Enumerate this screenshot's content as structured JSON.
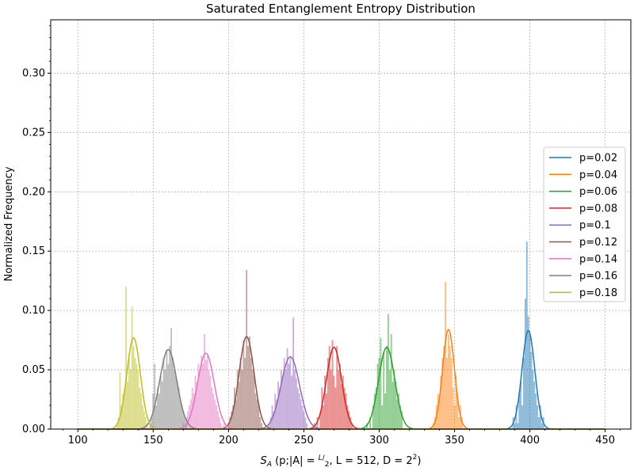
{
  "chart_data": {
    "type": "histogram",
    "title": "Saturated Entanglement Entropy Distribution",
    "xlabel": {
      "sym": "S",
      "sub": "A",
      "text_open": " (p;|A| = ",
      "frac_num": "L",
      "frac_den": "2",
      "text_mid": ", L = 512, D = 2",
      "sup": "2",
      "text_close": ")"
    },
    "ylabel": "Normalized Frequency",
    "xlim": [
      82,
      467
    ],
    "ylim": [
      0,
      0.345
    ],
    "x_ticks": [
      100,
      150,
      200,
      250,
      300,
      350,
      400,
      450
    ],
    "y_ticks": [
      0.0,
      0.05,
      0.1,
      0.15,
      0.2,
      0.25,
      0.3
    ],
    "x_tick_labels": [
      "100",
      "150",
      "200",
      "250",
      "300",
      "350",
      "400",
      "450"
    ],
    "y_tick_labels": [
      "0.00",
      "0.05",
      "0.10",
      "0.15",
      "0.20",
      "0.25",
      "0.30"
    ],
    "grid": true,
    "legend_position": "center-right",
    "fit_x_range": [
      100,
      450
    ],
    "series": [
      {
        "name": "p=0.02",
        "color": "#1f77b4",
        "mean": 399,
        "peak": 0.083,
        "bin_width": 1,
        "hist": [
          [
            389,
            0.01
          ],
          [
            390,
            0.005
          ],
          [
            391,
            0.02
          ],
          [
            392,
            0.005
          ],
          [
            393,
            0.03
          ],
          [
            394,
            0.04
          ],
          [
            395,
            0.02
          ],
          [
            396,
            0.06
          ],
          [
            397,
            0.11
          ],
          [
            398,
            0.158
          ],
          [
            399,
            0.095
          ],
          [
            400,
            0.08
          ],
          [
            401,
            0.065
          ],
          [
            402,
            0.05
          ],
          [
            403,
            0.04
          ],
          [
            404,
            0.03
          ],
          [
            405,
            0.02
          ],
          [
            406,
            0.01
          ],
          [
            407,
            0.02
          ],
          [
            408,
            0.005
          ],
          [
            409,
            0.01
          ]
        ]
      },
      {
        "name": "p=0.04",
        "color": "#ff7f0e",
        "mean": 346,
        "peak": 0.084,
        "bin_width": 1,
        "hist": [
          [
            336,
            0.005
          ],
          [
            337,
            0.01
          ],
          [
            338,
            0.02
          ],
          [
            339,
            0.03
          ],
          [
            340,
            0.025
          ],
          [
            341,
            0.045
          ],
          [
            342,
            0.06
          ],
          [
            343,
            0.07
          ],
          [
            344,
            0.124
          ],
          [
            345,
            0.06
          ],
          [
            346,
            0.08
          ],
          [
            347,
            0.07
          ],
          [
            348,
            0.06
          ],
          [
            349,
            0.035
          ],
          [
            350,
            0.02
          ],
          [
            351,
            0.045
          ],
          [
            352,
            0.03
          ],
          [
            353,
            0.01
          ],
          [
            354,
            0.02
          ],
          [
            355,
            0.01
          ]
        ]
      },
      {
        "name": "p=0.06",
        "color": "#2ca02c",
        "mean": 305,
        "peak": 0.069,
        "bin_width": 1,
        "hist": [
          [
            292,
            0.005
          ],
          [
            294,
            0.01
          ],
          [
            296,
            0.02
          ],
          [
            297,
            0.03
          ],
          [
            298,
            0.035
          ],
          [
            299,
            0.055
          ],
          [
            300,
            0.06
          ],
          [
            301,
            0.077
          ],
          [
            302,
            0.02
          ],
          [
            303,
            0.065
          ],
          [
            304,
            0.03
          ],
          [
            305,
            0.07
          ],
          [
            306,
            0.097
          ],
          [
            307,
            0.05
          ],
          [
            308,
            0.08
          ],
          [
            309,
            0.04
          ],
          [
            310,
            0.05
          ],
          [
            311,
            0.04
          ],
          [
            312,
            0.025
          ],
          [
            313,
            0.03
          ],
          [
            314,
            0.02
          ],
          [
            315,
            0.015
          ]
        ]
      },
      {
        "name": "p=0.08",
        "color": "#d62728",
        "mean": 270,
        "peak": 0.069,
        "bin_width": 1,
        "hist": [
          [
            257,
            0.005
          ],
          [
            259,
            0.01
          ],
          [
            261,
            0.015
          ],
          [
            262,
            0.035
          ],
          [
            263,
            0.02
          ],
          [
            264,
            0.045
          ],
          [
            265,
            0.03
          ],
          [
            266,
            0.06
          ],
          [
            267,
            0.07
          ],
          [
            268,
            0.05
          ],
          [
            269,
            0.075
          ],
          [
            270,
            0.045
          ],
          [
            271,
            0.035
          ],
          [
            272,
            0.07
          ],
          [
            273,
            0.05
          ],
          [
            274,
            0.055
          ],
          [
            275,
            0.038
          ],
          [
            276,
            0.045
          ],
          [
            277,
            0.035
          ],
          [
            278,
            0.03
          ],
          [
            279,
            0.02
          ],
          [
            280,
            0.015
          ],
          [
            281,
            0.01
          ],
          [
            282,
            0.005
          ]
        ]
      },
      {
        "name": "p=0.1",
        "color": "#9467bd",
        "mean": 241,
        "peak": 0.061,
        "bin_width": 1,
        "hist": [
          [
            227,
            0.005
          ],
          [
            228,
            0.01
          ],
          [
            229,
            0.02
          ],
          [
            230,
            0.015
          ],
          [
            231,
            0.03
          ],
          [
            232,
            0.025
          ],
          [
            233,
            0.04
          ],
          [
            234,
            0.035
          ],
          [
            235,
            0.05
          ],
          [
            236,
            0.045
          ],
          [
            237,
            0.06
          ],
          [
            238,
            0.05
          ],
          [
            239,
            0.068
          ],
          [
            240,
            0.055
          ],
          [
            241,
            0.06
          ],
          [
            242,
            0.045
          ],
          [
            243,
            0.094
          ],
          [
            244,
            0.05
          ],
          [
            245,
            0.043
          ],
          [
            246,
            0.035
          ],
          [
            247,
            0.03
          ],
          [
            248,
            0.025
          ],
          [
            249,
            0.02
          ],
          [
            250,
            0.015
          ],
          [
            251,
            0.01
          ],
          [
            252,
            0.005
          ]
        ]
      },
      {
        "name": "p=0.12",
        "color": "#8c564b",
        "mean": 212,
        "peak": 0.078,
        "bin_width": 1,
        "hist": [
          [
            200,
            0.005
          ],
          [
            201,
            0.01
          ],
          [
            202,
            0.015
          ],
          [
            203,
            0.02
          ],
          [
            204,
            0.035
          ],
          [
            205,
            0.025
          ],
          [
            206,
            0.05
          ],
          [
            207,
            0.04
          ],
          [
            208,
            0.06
          ],
          [
            209,
            0.05
          ],
          [
            210,
            0.075
          ],
          [
            211,
            0.06
          ],
          [
            212,
            0.134
          ],
          [
            213,
            0.07
          ],
          [
            214,
            0.078
          ],
          [
            215,
            0.06
          ],
          [
            216,
            0.05
          ],
          [
            217,
            0.045
          ],
          [
            218,
            0.03
          ],
          [
            219,
            0.025
          ],
          [
            220,
            0.02
          ],
          [
            221,
            0.01
          ],
          [
            222,
            0.005
          ]
        ]
      },
      {
        "name": "p=0.14",
        "color": "#e377c2",
        "mean": 185,
        "peak": 0.064,
        "bin_width": 1,
        "hist": [
          [
            170,
            0.005
          ],
          [
            172,
            0.01
          ],
          [
            173,
            0.015
          ],
          [
            174,
            0.02
          ],
          [
            175,
            0.025
          ],
          [
            176,
            0.035
          ],
          [
            177,
            0.03
          ],
          [
            178,
            0.045
          ],
          [
            179,
            0.04
          ],
          [
            180,
            0.055
          ],
          [
            181,
            0.05
          ],
          [
            182,
            0.062
          ],
          [
            183,
            0.055
          ],
          [
            184,
            0.08
          ],
          [
            185,
            0.058
          ],
          [
            186,
            0.062
          ],
          [
            187,
            0.05
          ],
          [
            188,
            0.045
          ],
          [
            189,
            0.035
          ],
          [
            190,
            0.03
          ],
          [
            191,
            0.025
          ],
          [
            192,
            0.02
          ],
          [
            193,
            0.015
          ],
          [
            194,
            0.01
          ],
          [
            195,
            0.005
          ],
          [
            197,
            0.005
          ]
        ]
      },
      {
        "name": "p=0.16",
        "color": "#7f7f7f",
        "mean": 160,
        "peak": 0.067,
        "bin_width": 1,
        "hist": [
          [
            148,
            0.005
          ],
          [
            149,
            0.01
          ],
          [
            150,
            0.03
          ],
          [
            151,
            0.055
          ],
          [
            152,
            0.02
          ],
          [
            153,
            0.035
          ],
          [
            154,
            0.03
          ],
          [
            155,
            0.045
          ],
          [
            156,
            0.04
          ],
          [
            157,
            0.06
          ],
          [
            158,
            0.05
          ],
          [
            159,
            0.067
          ],
          [
            160,
            0.055
          ],
          [
            161,
            0.07
          ],
          [
            162,
            0.085
          ],
          [
            163,
            0.06
          ],
          [
            164,
            0.05
          ],
          [
            165,
            0.045
          ],
          [
            166,
            0.04
          ],
          [
            167,
            0.035
          ],
          [
            168,
            0.025
          ],
          [
            169,
            0.02
          ],
          [
            170,
            0.015
          ],
          [
            171,
            0.01
          ],
          [
            172,
            0.005
          ]
        ]
      },
      {
        "name": "p=0.18",
        "color": "#bcbd22",
        "mean": 137,
        "peak": 0.077,
        "bin_width": 1,
        "hist": [
          [
            126,
            0.005
          ],
          [
            127,
            0.01
          ],
          [
            128,
            0.048
          ],
          [
            129,
            0.02
          ],
          [
            130,
            0.03
          ],
          [
            131,
            0.035
          ],
          [
            132,
            0.12
          ],
          [
            133,
            0.04
          ],
          [
            134,
            0.06
          ],
          [
            135,
            0.05
          ],
          [
            136,
            0.103
          ],
          [
            137,
            0.07
          ],
          [
            138,
            0.06
          ],
          [
            139,
            0.055
          ],
          [
            140,
            0.05
          ],
          [
            141,
            0.035
          ],
          [
            142,
            0.03
          ],
          [
            143,
            0.02
          ],
          [
            144,
            0.015
          ],
          [
            145,
            0.01
          ],
          [
            146,
            0.005
          ]
        ]
      }
    ]
  }
}
